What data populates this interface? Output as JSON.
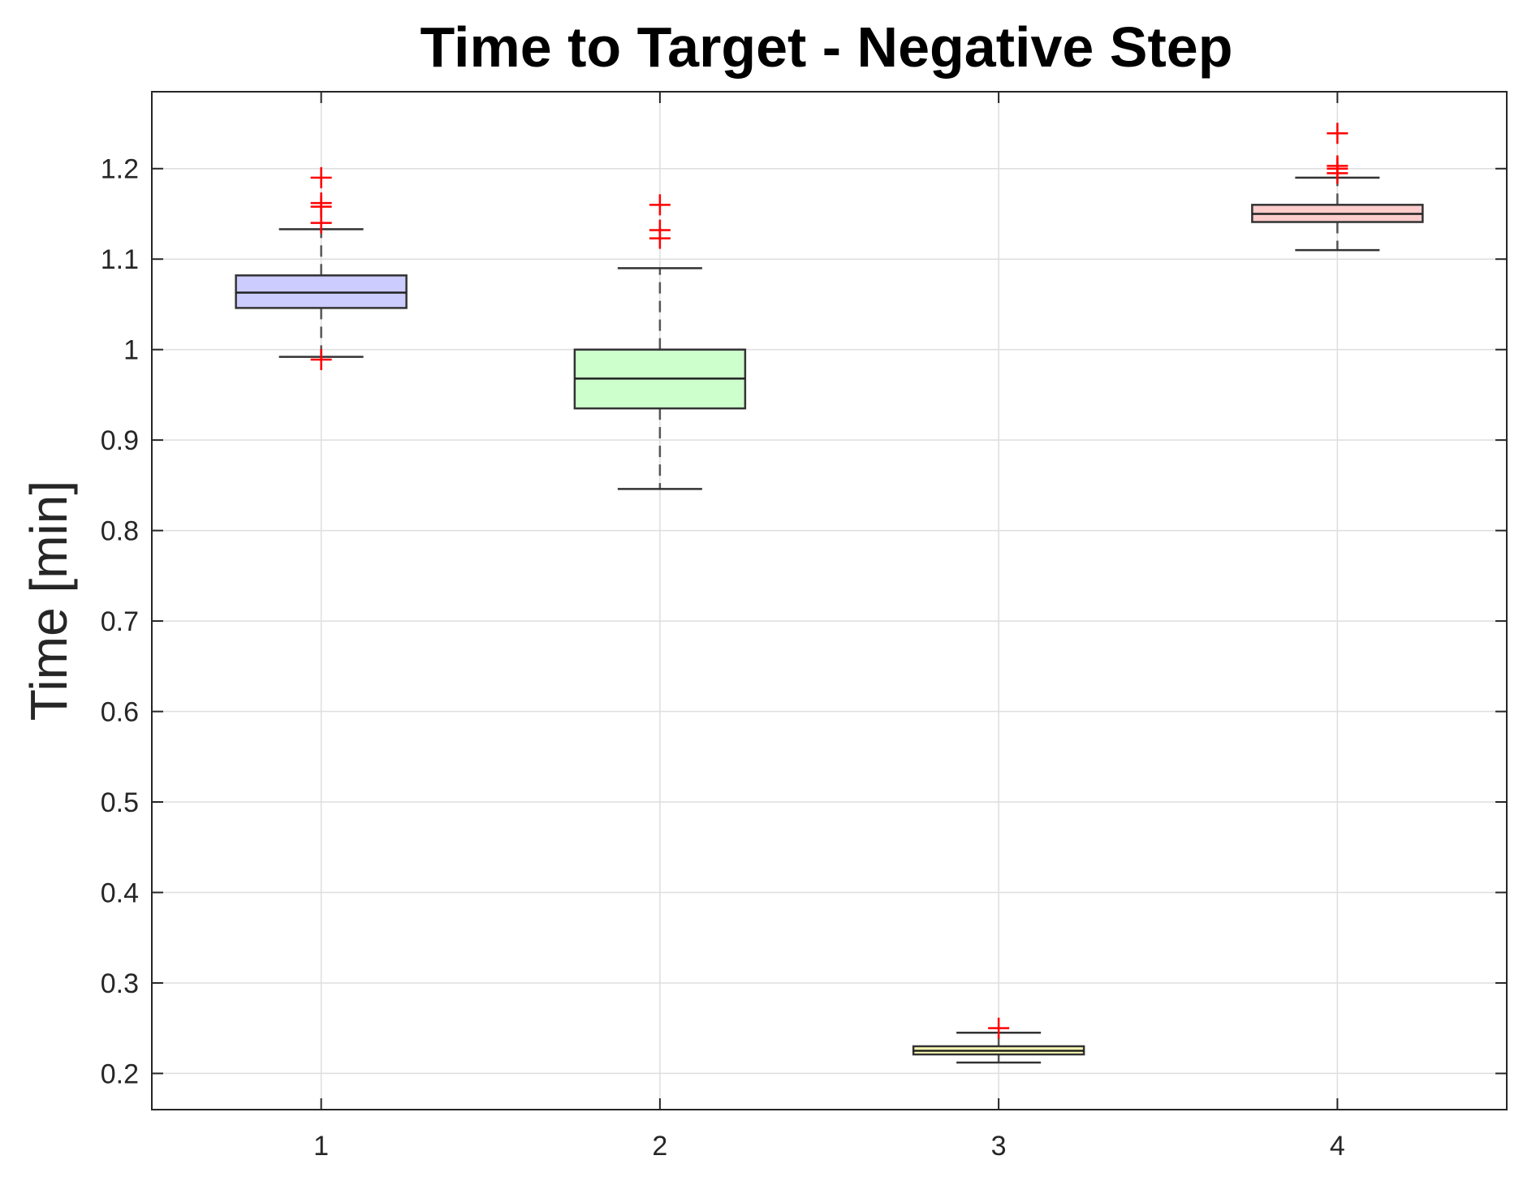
{
  "chart_data": {
    "type": "box",
    "title": "Time to Target - Negative Step",
    "xlabel": "",
    "ylabel": "Time [min]",
    "categories": [
      "1",
      "2",
      "3",
      "4"
    ],
    "ylim": [
      0.16,
      1.285
    ],
    "yticks": [
      "0.2",
      "0.3",
      "0.4",
      "0.5",
      "0.6",
      "0.7",
      "0.8",
      "0.9",
      "1",
      "1.1",
      "1.2"
    ],
    "grid": true,
    "boxes": [
      {
        "category": "1",
        "q1": 1.046,
        "median": 1.063,
        "q3": 1.082,
        "whisker_low": 0.992,
        "whisker_high": 1.133,
        "outliers": [
          0.989,
          1.14,
          1.158,
          1.162,
          1.19
        ],
        "fill": "#ccccff"
      },
      {
        "category": "2",
        "q1": 0.935,
        "median": 0.968,
        "q3": 1.0,
        "whisker_low": 0.846,
        "whisker_high": 1.09,
        "outliers": [
          1.123,
          1.132,
          1.16
        ],
        "fill": "#ccffcc"
      },
      {
        "category": "3",
        "q1": 0.221,
        "median": 0.225,
        "q3": 0.23,
        "whisker_low": 0.212,
        "whisker_high": 0.245,
        "outliers": [
          0.25
        ],
        "fill": "#ffffb3"
      },
      {
        "category": "4",
        "q1": 1.141,
        "median": 1.15,
        "q3": 1.16,
        "whisker_low": 1.11,
        "whisker_high": 1.19,
        "outliers": [
          1.195,
          1.2,
          1.203,
          1.239
        ],
        "fill": "#ffcccc"
      }
    ],
    "outlier_color": "#ff0000"
  }
}
